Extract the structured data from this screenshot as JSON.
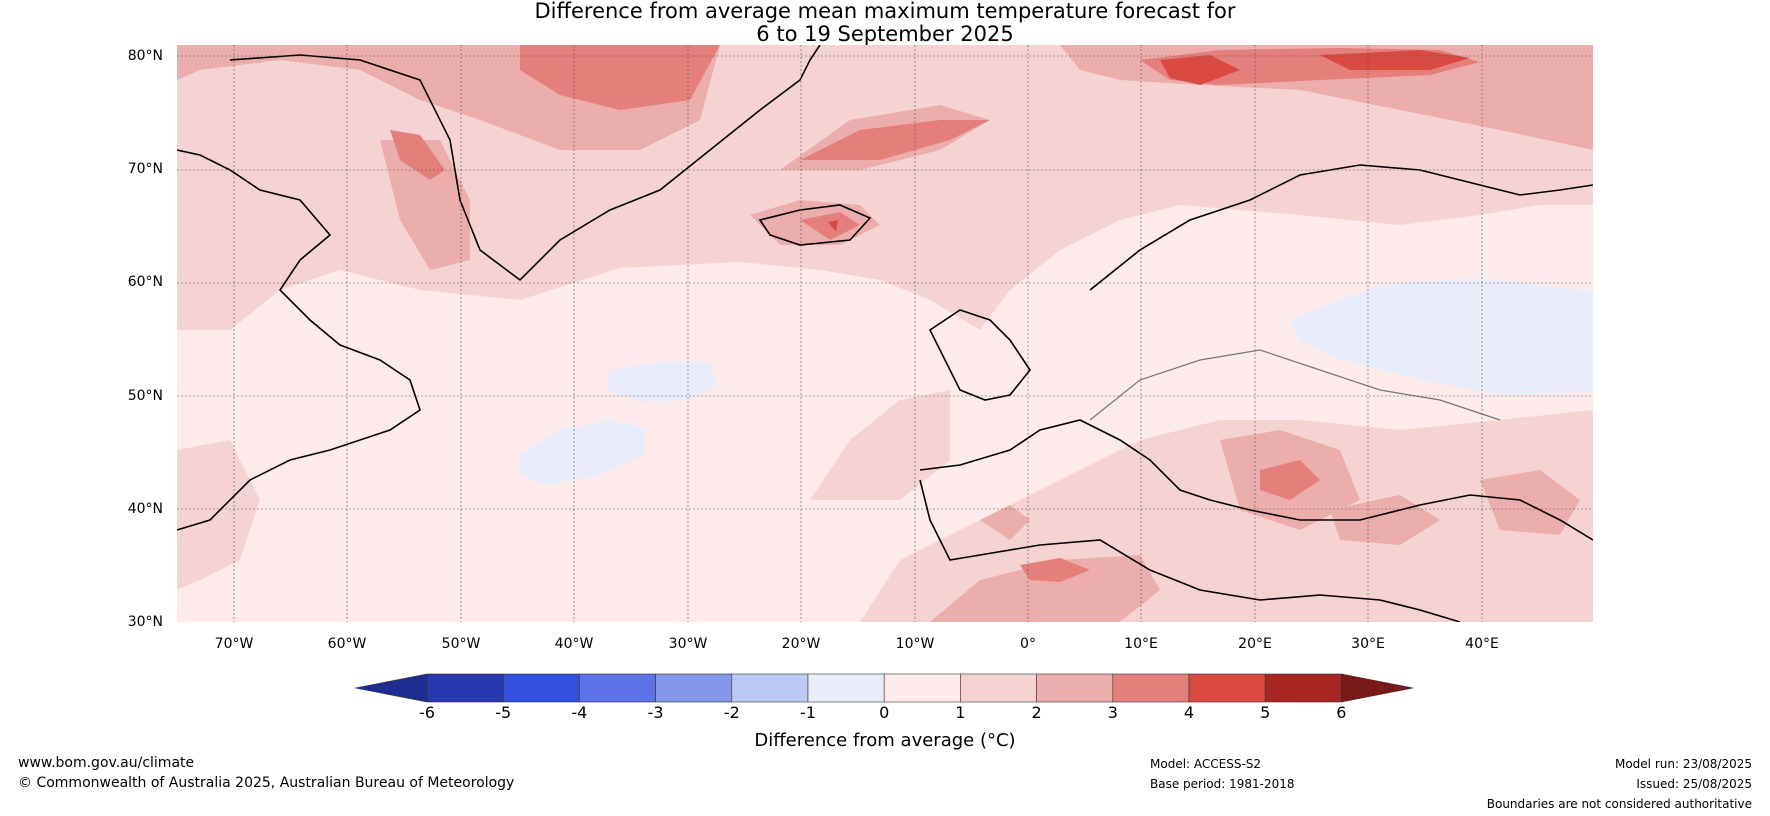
{
  "title_line1": "Difference from average mean maximum temperature forecast for",
  "title_line2": "6 to 19 September 2025",
  "lat_labels": [
    "80°N",
    "70°N",
    "60°N",
    "50°N",
    "40°N",
    "30°N"
  ],
  "lon_labels": [
    "70°W",
    "60°W",
    "50°W",
    "40°W",
    "30°W",
    "20°W",
    "10°W",
    "0°",
    "10°E",
    "20°E",
    "30°E",
    "40°E"
  ],
  "colorbar": {
    "ticks": [
      "-6",
      "-5",
      "-4",
      "-3",
      "-2",
      "-1",
      "0",
      "1",
      "2",
      "3",
      "4",
      "5",
      "6"
    ],
    "colors": [
      "#1e2d92",
      "#2538b0",
      "#3150de",
      "#5b73e6",
      "#8597ea",
      "#bec8f4",
      "#e9edfb",
      "#fcebea",
      "#f6d3d3",
      "#ecaeac",
      "#e47f7b",
      "#d94a40",
      "#a82521",
      "#7a1a17"
    ],
    "label": "Difference from average (°C)"
  },
  "footer": {
    "website": "www.bom.gov.au/climate",
    "copyright": "© Commonwealth of Australia 2025, Australian Bureau of Meteorology",
    "model": "Model: ACCESS-S2",
    "base_period": "Base period: 1981-2018",
    "model_run": "Model run: 23/08/2025",
    "issued": "Issued: 25/08/2025",
    "disclaimer": "Boundaries are not considered authoritative"
  }
}
